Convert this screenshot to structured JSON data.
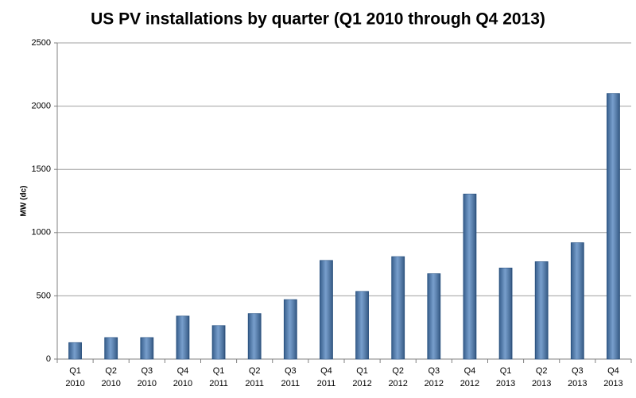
{
  "chart_data": {
    "type": "bar",
    "title": "US PV installations by quarter (Q1 2010 through Q4 2013)",
    "y_label": "MW (dc)",
    "categories": [
      [
        "Q1",
        "2010"
      ],
      [
        "Q2",
        "2010"
      ],
      [
        "Q3",
        "2010"
      ],
      [
        "Q4",
        "2010"
      ],
      [
        "Q1",
        "2011"
      ],
      [
        "Q2",
        "2011"
      ],
      [
        "Q3",
        "2011"
      ],
      [
        "Q4",
        "2011"
      ],
      [
        "Q1",
        "2012"
      ],
      [
        "Q2",
        "2012"
      ],
      [
        "Q3",
        "2012"
      ],
      [
        "Q4",
        "2012"
      ],
      [
        "Q1",
        "2013"
      ],
      [
        "Q2",
        "2013"
      ],
      [
        "Q3",
        "2013"
      ],
      [
        "Q4",
        "2013"
      ]
    ],
    "values": [
      130,
      170,
      170,
      340,
      265,
      360,
      470,
      780,
      535,
      810,
      675,
      1305,
      720,
      770,
      920,
      2100
    ],
    "color": "#4a7ebb",
    "ylim": [
      0,
      2500
    ],
    "yticks": [
      0,
      500,
      1000,
      1500,
      2000,
      2500
    ],
    "grid": true
  }
}
